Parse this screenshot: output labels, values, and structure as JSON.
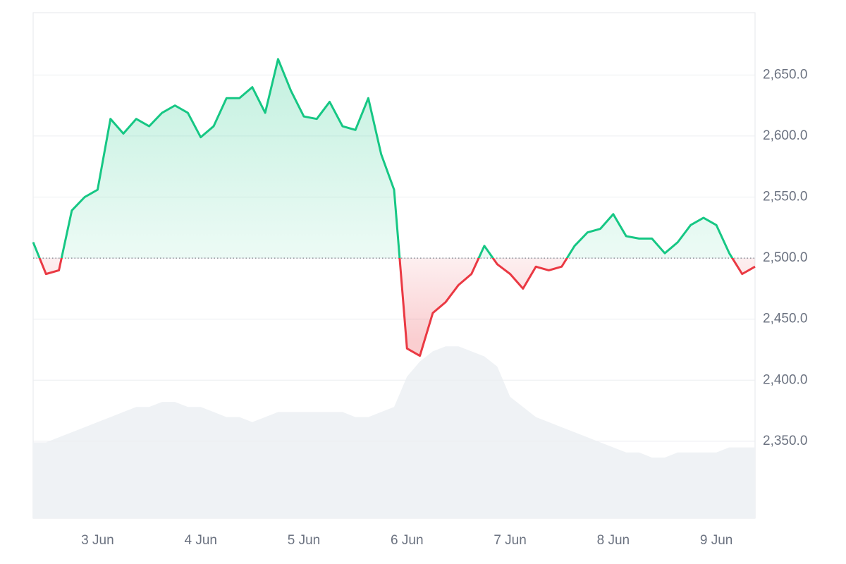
{
  "chart_data": {
    "type": "line",
    "categories": [
      null,
      null,
      null,
      null,
      null,
      "3 Jun",
      null,
      null,
      null,
      null,
      null,
      null,
      null,
      "4 Jun",
      null,
      null,
      null,
      null,
      null,
      null,
      null,
      "5 Jun",
      null,
      null,
      null,
      null,
      null,
      null,
      null,
      "6 Jun",
      null,
      null,
      null,
      null,
      null,
      null,
      null,
      "7 Jun",
      null,
      null,
      null,
      null,
      null,
      null,
      null,
      "8 Jun",
      null,
      null,
      null,
      null,
      null,
      null,
      null,
      "9 Jun",
      null,
      null,
      null
    ],
    "values": [
      2513,
      2487,
      2490,
      2539,
      2550,
      2556,
      2614,
      2602,
      2614,
      2608,
      2619,
      2625,
      2619,
      2599,
      2608,
      2631,
      2631,
      2640,
      2619,
      2663,
      2637,
      2616,
      2614,
      2628,
      2608,
      2605,
      2631,
      2585,
      2556,
      2426,
      2420,
      2455,
      2464,
      2478,
      2487,
      2510,
      2495,
      2487,
      2475,
      2493,
      2490,
      2493,
      2510,
      2521,
      2524,
      2536,
      2518,
      2516,
      2516,
      2504,
      2513,
      2527,
      2533,
      2527,
      2504,
      2487,
      2493
    ],
    "baseline": 2500,
    "color_up": "#16c784",
    "color_down": "#ea3943",
    "ylim": [
      2287,
      2701
    ],
    "yticks": [
      {
        "value": 2350,
        "label": "2,350.0"
      },
      {
        "value": 2400,
        "label": "2,400.0"
      },
      {
        "value": 2450,
        "label": "2,450.0"
      },
      {
        "value": 2500,
        "label": "2,500.0"
      },
      {
        "value": 2550,
        "label": "2,550.0"
      },
      {
        "value": 2600,
        "label": "2,600.0"
      },
      {
        "value": 2650,
        "label": "2,650.0"
      }
    ],
    "grid": true,
    "volume": {
      "color": "#eff2f5",
      "axis": "y2",
      "values": [
        15,
        15,
        16,
        17,
        18,
        19,
        20,
        21,
        22,
        22,
        23,
        23,
        22,
        22,
        21,
        20,
        20,
        19,
        20,
        21,
        21,
        21,
        21,
        21,
        21,
        20,
        20,
        21,
        22,
        28,
        31,
        33,
        34,
        34,
        33,
        32,
        30,
        24,
        22,
        20,
        19,
        18,
        17,
        16,
        15,
        14,
        13,
        13,
        12,
        12,
        13,
        13,
        13,
        13,
        14,
        14,
        14
      ]
    },
    "y2lim": [
      0,
      100
    ]
  }
}
